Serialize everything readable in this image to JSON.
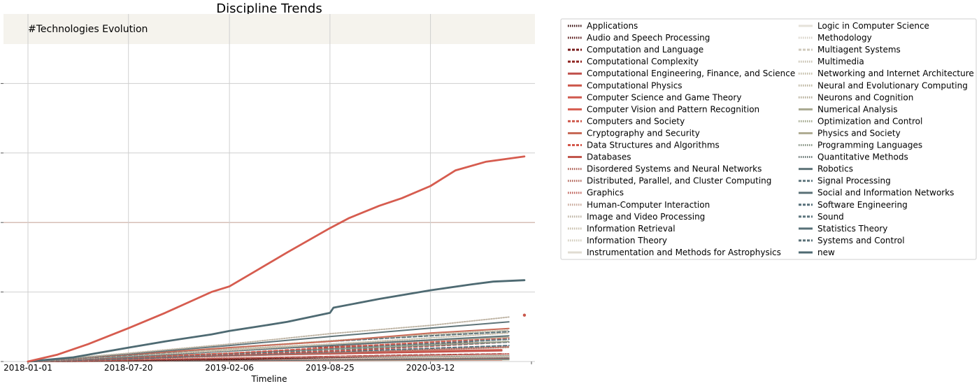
{
  "chart_data": {
    "type": "line",
    "title": "Discipline Trends",
    "annotation": "#Technologies Evolution",
    "xlabel": "Timeline",
    "ylabel": "",
    "x_tick_labels": [
      "2018-01-01",
      "2018-07-20",
      "2019-02-06",
      "2019-08-25",
      "2020-03-12"
    ],
    "xlim": [
      "2018-01-01",
      "2020-09-29"
    ],
    "ylim": [
      0,
      1000
    ],
    "y_ticks": [
      0,
      200,
      400,
      600,
      800
    ],
    "y_tick_labels_shown": false,
    "grid": true,
    "legend_position": "outside-right",
    "series": [
      {
        "name": "Applications",
        "color": "#3c1414",
        "style": "dotted",
        "points": [
          [
            "2018-01-01",
            0
          ],
          [
            "2018-09-01",
            3
          ],
          [
            "2019-06-01",
            6
          ],
          [
            "2020-03-01",
            9
          ],
          [
            "2020-07-01",
            10
          ]
        ]
      },
      {
        "name": "Audio and Speech Processing",
        "color": "#5a1a1a",
        "style": "dotted",
        "points": [
          [
            "2018-01-01",
            0
          ],
          [
            "2019-03-01",
            6
          ],
          [
            "2020-01-01",
            15
          ],
          [
            "2020-08-01",
            20
          ]
        ]
      },
      {
        "name": "Computation and Language",
        "color": "#7a1f1f",
        "style": "dashed",
        "points": [
          [
            "2018-01-01",
            0
          ],
          [
            "2018-09-01",
            20
          ],
          [
            "2019-06-01",
            40
          ],
          [
            "2020-03-01",
            50
          ],
          [
            "2020-08-01",
            56
          ]
        ]
      },
      {
        "name": "Computational Complexity",
        "color": "#8f2420",
        "style": "dashed",
        "points": [
          [
            "2018-01-01",
            0
          ],
          [
            "2019-01-01",
            8
          ],
          [
            "2020-01-01",
            18
          ],
          [
            "2020-08-01",
            22
          ]
        ]
      },
      {
        "name": "Computational Engineering, Finance, and Science",
        "color": "#c0504a",
        "style": "solid",
        "points": [
          [
            "2018-01-01",
            0
          ],
          [
            "2018-07-20",
            9
          ],
          [
            "2019-06-01",
            20
          ],
          [
            "2020-08-01",
            31
          ]
        ]
      },
      {
        "name": "Computational Physics",
        "color": "#cc5548",
        "style": "solid",
        "points": [
          [
            "2018-01-01",
            0
          ],
          [
            "2019-01-01",
            2
          ],
          [
            "2020-08-01",
            5
          ]
        ]
      },
      {
        "name": "Computer Science and Game Theory",
        "color": "#d05a4e",
        "style": "solid",
        "points": [
          [
            "2018-01-01",
            0
          ],
          [
            "2018-10-01",
            12
          ],
          [
            "2019-08-01",
            25
          ],
          [
            "2020-08-01",
            34
          ]
        ]
      },
      {
        "name": "Computer Vision and Pattern Recognition",
        "color": "#d65c4f",
        "style": "solid",
        "points": [
          [
            "2018-01-01",
            0
          ],
          [
            "2018-03-01",
            20
          ],
          [
            "2018-05-01",
            50
          ],
          [
            "2018-07-20",
            96
          ],
          [
            "2018-10-01",
            140
          ],
          [
            "2019-01-01",
            200
          ],
          [
            "2019-02-06",
            216
          ],
          [
            "2019-04-01",
            262
          ],
          [
            "2019-06-01",
            314
          ],
          [
            "2019-08-25",
            384
          ],
          [
            "2019-10-01",
            412
          ],
          [
            "2019-12-01",
            448
          ],
          [
            "2020-01-15",
            470
          ],
          [
            "2020-03-12",
            505
          ],
          [
            "2020-05-01",
            550
          ],
          [
            "2020-07-01",
            575
          ],
          [
            "2020-09-15",
            590
          ]
        ]
      },
      {
        "name": "Computers and Society",
        "color": "#cf5a4d",
        "style": "dashed",
        "points": [
          [
            "2018-01-01",
            0
          ],
          [
            "2019-02-06",
            24
          ],
          [
            "2019-08-25",
            40
          ],
          [
            "2020-03-12",
            56
          ],
          [
            "2020-08-15",
            68
          ]
        ]
      },
      {
        "name": "Cryptography and Security",
        "color": "#c86b58",
        "style": "solid",
        "points": [
          [
            "2018-01-01",
            0
          ],
          [
            "2018-07-20",
            20
          ],
          [
            "2019-02-06",
            40
          ],
          [
            "2019-08-25",
            58
          ],
          [
            "2020-03-12",
            82
          ],
          [
            "2020-08-15",
            95
          ]
        ]
      },
      {
        "name": "Data Structures and Algorithms",
        "color": "#d3574a",
        "style": "dashed",
        "points": [
          [
            "2018-01-01",
            0
          ],
          [
            "2019-01-01",
            18
          ],
          [
            "2019-08-25",
            30
          ],
          [
            "2020-03-12",
            44
          ],
          [
            "2020-08-15",
            56
          ]
        ]
      },
      {
        "name": "Databases",
        "color": "#c2574d",
        "style": "solid",
        "points": [
          [
            "2018-01-01",
            0
          ],
          [
            "2019-02-06",
            6
          ],
          [
            "2020-08-15",
            14
          ]
        ]
      },
      {
        "name": "Disordered Systems and Neural Networks",
        "color": "#b0645a",
        "style": "dotted",
        "points": [
          [
            "2018-01-01",
            0
          ],
          [
            "2019-06-01",
            6
          ],
          [
            "2020-08-15",
            10
          ]
        ]
      },
      {
        "name": "Distributed, Parallel, and Cluster Computing",
        "color": "#b56a5e",
        "style": "dotted",
        "points": [
          [
            "2018-01-01",
            0
          ],
          [
            "2018-07-20",
            8
          ],
          [
            "2019-02-06",
            16
          ],
          [
            "2019-08-25",
            24
          ],
          [
            "2020-03-12",
            34
          ],
          [
            "2020-08-15",
            42
          ]
        ]
      },
      {
        "name": "Graphics",
        "color": "#c0645c",
        "style": "dotted",
        "points": [
          [
            "2018-01-01",
            0
          ],
          [
            "2019-02-06",
            10
          ],
          [
            "2020-08-15",
            22
          ]
        ]
      },
      {
        "name": "Human-Computer Interaction",
        "color": "#c8a89a",
        "style": "dotted",
        "points": [
          [
            "2018-01-01",
            0
          ],
          [
            "2018-07-20",
            14
          ],
          [
            "2019-02-06",
            30
          ],
          [
            "2019-08-25",
            45
          ],
          [
            "2020-03-12",
            60
          ],
          [
            "2020-08-15",
            70
          ]
        ]
      },
      {
        "name": "Image and Video Processing",
        "color": "#bfb5a5",
        "style": "dotted",
        "points": [
          [
            "2018-01-01",
            0
          ],
          [
            "2018-07-20",
            24
          ],
          [
            "2019-02-06",
            50
          ],
          [
            "2019-08-25",
            80
          ],
          [
            "2020-03-12",
            104
          ],
          [
            "2020-08-15",
            128
          ]
        ]
      },
      {
        "name": "Information Retrieval",
        "color": "#c9c0ae",
        "style": "dotted",
        "points": [
          [
            "2018-01-01",
            0
          ],
          [
            "2018-07-20",
            16
          ],
          [
            "2019-02-06",
            32
          ],
          [
            "2019-08-25",
            50
          ],
          [
            "2020-03-12",
            68
          ],
          [
            "2020-08-15",
            82
          ]
        ]
      },
      {
        "name": "Information Theory",
        "color": "#d2ccbc",
        "style": "dotted",
        "points": [
          [
            "2018-01-01",
            0
          ],
          [
            "2019-02-06",
            16
          ],
          [
            "2020-08-15",
            40
          ]
        ]
      },
      {
        "name": "Instrumentation and Methods for Astrophysics",
        "color": "#e0dcd2",
        "style": "solid",
        "points": [
          [
            "2018-01-01",
            0
          ],
          [
            "2019-08-25",
            2
          ],
          [
            "2020-08-15",
            4
          ]
        ]
      },
      {
        "name": "Logic in Computer Science",
        "color": "#e5e2da",
        "style": "solid",
        "points": [
          [
            "2018-01-01",
            0
          ],
          [
            "2019-02-06",
            10
          ],
          [
            "2020-08-15",
            20
          ]
        ]
      },
      {
        "name": "Methodology",
        "color": "#d8d3c8",
        "style": "dotted",
        "points": [
          [
            "2018-01-01",
            0
          ],
          [
            "2019-02-06",
            6
          ],
          [
            "2020-08-15",
            14
          ]
        ]
      },
      {
        "name": "Multiagent Systems",
        "color": "#d0cabd",
        "style": "dashed",
        "points": [
          [
            "2018-01-01",
            0
          ],
          [
            "2019-02-06",
            8
          ],
          [
            "2020-08-15",
            18
          ]
        ]
      },
      {
        "name": "Multimedia",
        "color": "#c8c2b2",
        "style": "dotted",
        "points": [
          [
            "2018-01-01",
            0
          ],
          [
            "2019-02-06",
            8
          ],
          [
            "2020-08-15",
            16
          ]
        ]
      },
      {
        "name": "Networking and Internet Architecture",
        "color": "#c5bfaa",
        "style": "dotted",
        "points": [
          [
            "2018-01-01",
            0
          ],
          [
            "2018-07-20",
            20
          ],
          [
            "2019-02-06",
            40
          ],
          [
            "2019-08-25",
            60
          ],
          [
            "2020-03-12",
            78
          ],
          [
            "2020-08-15",
            90
          ]
        ]
      },
      {
        "name": "Neural and Evolutionary Computing",
        "color": "#bdb6a0",
        "style": "dotted",
        "points": [
          [
            "2018-01-01",
            0
          ],
          [
            "2018-07-20",
            18
          ],
          [
            "2019-02-06",
            36
          ],
          [
            "2019-08-25",
            50
          ],
          [
            "2020-03-12",
            62
          ],
          [
            "2020-08-15",
            70
          ]
        ]
      },
      {
        "name": "Neurons and Cognition",
        "color": "#b5ae98",
        "style": "dotted",
        "points": [
          [
            "2018-01-01",
            0
          ],
          [
            "2019-02-06",
            5
          ],
          [
            "2020-08-15",
            12
          ]
        ]
      },
      {
        "name": "Numerical Analysis",
        "color": "#a8a890",
        "style": "solid",
        "points": [
          [
            "2018-01-01",
            0
          ],
          [
            "2019-02-06",
            4
          ],
          [
            "2020-08-15",
            8
          ]
        ]
      },
      {
        "name": "Optimization and Control",
        "color": "#a3a88e",
        "style": "dotted",
        "points": [
          [
            "2018-01-01",
            0
          ],
          [
            "2018-07-20",
            12
          ],
          [
            "2019-02-06",
            24
          ],
          [
            "2019-08-25",
            36
          ],
          [
            "2020-03-12",
            48
          ],
          [
            "2020-08-15",
            58
          ]
        ]
      },
      {
        "name": "Physics and Society",
        "color": "#b0ad94",
        "style": "solid",
        "points": [
          [
            "2018-01-01",
            0
          ],
          [
            "2019-02-06",
            3
          ],
          [
            "2020-08-15",
            6
          ]
        ]
      },
      {
        "name": "Programming Languages",
        "color": "#8c988a",
        "style": "dotted",
        "points": [
          [
            "2018-01-01",
            0
          ],
          [
            "2019-02-06",
            8
          ],
          [
            "2020-08-15",
            18
          ]
        ]
      },
      {
        "name": "Quantitative Methods",
        "color": "#6e7b79",
        "style": "dotted",
        "points": [
          [
            "2018-01-01",
            0
          ],
          [
            "2019-02-06",
            6
          ],
          [
            "2020-08-15",
            12
          ]
        ]
      },
      {
        "name": "Robotics",
        "color": "#5f7479",
        "style": "solid",
        "points": [
          [
            "2018-01-01",
            0
          ],
          [
            "2018-07-20",
            22
          ],
          [
            "2019-02-06",
            46
          ],
          [
            "2019-08-25",
            72
          ],
          [
            "2020-03-12",
            96
          ],
          [
            "2020-08-15",
            114
          ]
        ]
      },
      {
        "name": "Signal Processing",
        "color": "#637a80",
        "style": "dashed",
        "points": [
          [
            "2018-01-01",
            0
          ],
          [
            "2018-07-20",
            10
          ],
          [
            "2019-02-06",
            22
          ],
          [
            "2019-08-25",
            34
          ],
          [
            "2020-03-12",
            46
          ],
          [
            "2020-08-15",
            56
          ]
        ]
      },
      {
        "name": "Social and Information Networks",
        "color": "#5c7278",
        "style": "solid",
        "points": [
          [
            "2018-01-01",
            0
          ],
          [
            "2018-07-20",
            14
          ],
          [
            "2019-02-06",
            30
          ],
          [
            "2019-08-25",
            46
          ],
          [
            "2020-03-12",
            62
          ],
          [
            "2020-08-15",
            74
          ]
        ]
      },
      {
        "name": "Software Engineering",
        "color": "#57707a",
        "style": "dashed",
        "points": [
          [
            "2018-01-01",
            0
          ],
          [
            "2018-07-20",
            8
          ],
          [
            "2019-02-06",
            18
          ],
          [
            "2019-08-25",
            28
          ],
          [
            "2020-03-12",
            38
          ],
          [
            "2020-08-15",
            46
          ]
        ]
      },
      {
        "name": "Sound",
        "color": "#5d767e",
        "style": "dashed",
        "points": [
          [
            "2018-01-01",
            0
          ],
          [
            "2018-07-20",
            10
          ],
          [
            "2019-02-06",
            22
          ],
          [
            "2019-08-25",
            38
          ],
          [
            "2020-03-12",
            52
          ],
          [
            "2020-08-15",
            64
          ]
        ]
      },
      {
        "name": "Statistics Theory",
        "color": "#587078",
        "style": "solid",
        "points": [
          [
            "2018-01-01",
            0
          ],
          [
            "2019-02-06",
            3
          ],
          [
            "2020-08-15",
            8
          ]
        ]
      },
      {
        "name": "Systems and Control",
        "color": "#5a7077",
        "style": "dashed",
        "points": [
          [
            "2018-01-01",
            0
          ],
          [
            "2018-07-20",
            18
          ],
          [
            "2019-02-06",
            40
          ],
          [
            "2019-08-25",
            58
          ],
          [
            "2020-03-12",
            74
          ],
          [
            "2020-08-15",
            86
          ]
        ]
      },
      {
        "name": "new",
        "color": "#4e6a72",
        "style": "solid",
        "points": [
          [
            "2018-01-01",
            0
          ],
          [
            "2018-04-01",
            12
          ],
          [
            "2018-07-20",
            40
          ],
          [
            "2018-10-01",
            58
          ],
          [
            "2019-01-01",
            78
          ],
          [
            "2019-02-06",
            88
          ],
          [
            "2019-04-01",
            100
          ],
          [
            "2019-06-01",
            114
          ],
          [
            "2019-08-25",
            140
          ],
          [
            "2019-09-01",
            155
          ],
          [
            "2019-12-01",
            180
          ],
          [
            "2020-03-12",
            205
          ],
          [
            "2020-06-01",
            222
          ],
          [
            "2020-07-15",
            230
          ],
          [
            "2020-09-15",
            234
          ]
        ]
      }
    ]
  }
}
